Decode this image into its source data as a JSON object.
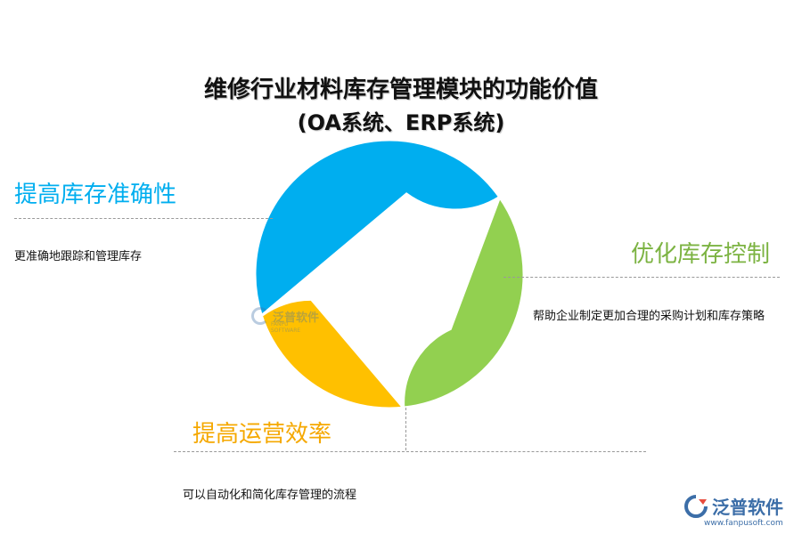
{
  "title": {
    "line1": "维修行业材料库存管理模块的功能价值",
    "line2": "(OA系统、ERP系统)"
  },
  "segments": [
    {
      "key": "accuracy",
      "heading": "提高库存准确性",
      "description": "更准确地跟踪和管理库存",
      "color": "#00AEEF"
    },
    {
      "key": "control",
      "heading": "优化库存控制",
      "description": "帮助企业制定更加合理的采购计划和库存策略",
      "color": "#92D050"
    },
    {
      "key": "efficiency",
      "heading": "提高运营效率",
      "description": "可以自动化和简化库存管理的流程",
      "color": "#FFC000"
    }
  ],
  "watermark": {
    "name": "泛普软件",
    "sub": "FANPU SOFTWARE"
  },
  "logo": {
    "name": "泛普软件",
    "url": "www.fanpusoft.com"
  }
}
